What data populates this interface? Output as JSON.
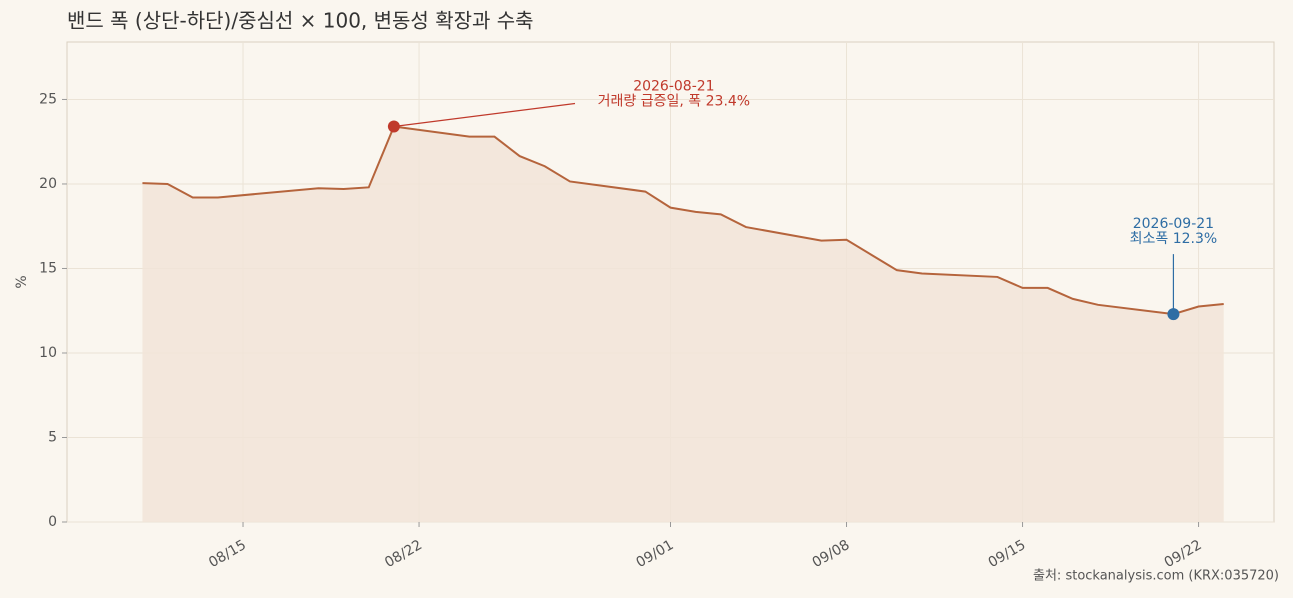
{
  "chart_data": {
    "type": "line",
    "title": "밴드 폭 (상단-하단)/중심선 × 100, 변동성 확장과 수축",
    "y_label": "%",
    "source": "출처: stockanalysis.com (KRX:035720)",
    "x": [
      "2026-08-11",
      "2026-08-12",
      "2026-08-13",
      "2026-08-14",
      "2026-08-18",
      "2026-08-19",
      "2026-08-20",
      "2026-08-21",
      "2026-08-24",
      "2026-08-25",
      "2026-08-26",
      "2026-08-27",
      "2026-08-28",
      "2026-08-31",
      "2026-09-01",
      "2026-09-02",
      "2026-09-03",
      "2026-09-04",
      "2026-09-07",
      "2026-09-08",
      "2026-09-09",
      "2026-09-10",
      "2026-09-11",
      "2026-09-14",
      "2026-09-15",
      "2026-09-16",
      "2026-09-17",
      "2026-09-18",
      "2026-09-21",
      "2026-09-22",
      "2026-09-23"
    ],
    "series": [
      {
        "name": "밴드 폭",
        "color": "#b5643c",
        "fill": "#f1e4d8",
        "values": [
          20.05,
          20.0,
          19.2,
          19.2,
          19.75,
          19.7,
          19.8,
          23.4,
          22.8,
          22.8,
          21.65,
          21.05,
          20.15,
          19.55,
          18.6,
          18.35,
          18.2,
          17.45,
          16.65,
          16.7,
          15.8,
          14.9,
          14.7,
          14.5,
          13.85,
          13.85,
          13.2,
          12.85,
          12.3,
          12.75,
          12.9
        ]
      }
    ],
    "xlim": [
      "2026-08-08",
      "2026-09-25"
    ],
    "xticks": [
      {
        "value": "2026-08-15",
        "label": "08/15"
      },
      {
        "value": "2026-08-22",
        "label": "08/22"
      },
      {
        "value": "2026-09-01",
        "label": "09/01"
      },
      {
        "value": "2026-09-08",
        "label": "09/08"
      },
      {
        "value": "2026-09-15",
        "label": "09/15"
      },
      {
        "value": "2026-09-22",
        "label": "09/22"
      }
    ],
    "ylim": [
      0,
      28.4
    ],
    "yticks": [
      0,
      5,
      10,
      15,
      20,
      25
    ],
    "grid": true,
    "annotations": [
      {
        "index": 7,
        "color": "#c0392b",
        "lines": [
          "2026-08-21",
          "거래량 급증일, 폭 23.4%"
        ]
      },
      {
        "index": 28,
        "color": "#2e6da4",
        "lines": [
          "2026-09-21",
          "최소폭 12.3%"
        ]
      }
    ]
  }
}
